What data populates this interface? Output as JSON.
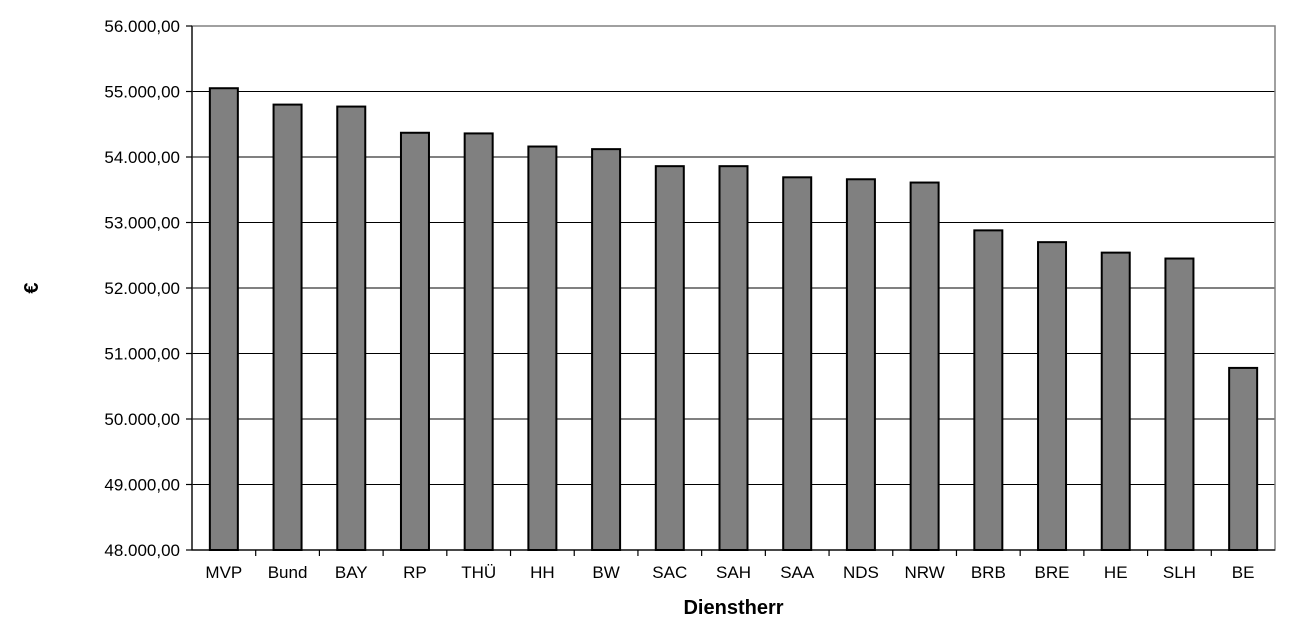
{
  "chart_data": {
    "type": "bar",
    "title": "",
    "xlabel": "Dienstherr",
    "ylabel": "€",
    "categories": [
      "MVP",
      "Bund",
      "BAY",
      "RP",
      "THÜ",
      "HH",
      "BW",
      "SAC",
      "SAH",
      "SAA",
      "NDS",
      "NRW",
      "BRB",
      "BRE",
      "HE",
      "SLH",
      "BE"
    ],
    "values": [
      55050,
      54800,
      54770,
      54370,
      54360,
      54160,
      54120,
      53860,
      53860,
      53690,
      53660,
      53610,
      52880,
      52700,
      52540,
      52450,
      50780
    ],
    "ylim": [
      48000,
      56000
    ],
    "ytick_step": 1000,
    "ytick_labels": [
      "48.000,00",
      "49.000,00",
      "50.000,00",
      "51.000,00",
      "52.000,00",
      "53.000,00",
      "54.000,00",
      "55.000,00",
      "56.000,00"
    ],
    "grid": true,
    "bar_color": "#808080",
    "legend": "none"
  }
}
